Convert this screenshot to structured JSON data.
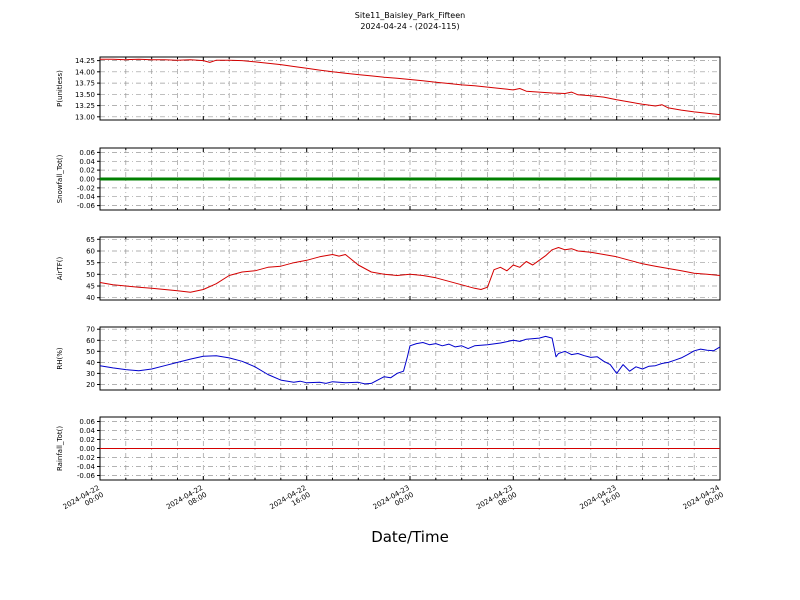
{
  "figure": {
    "title_line1": "Site11_Baisley_Park_Fifteen",
    "title_line2": "2024-04-24 - (2024-115)",
    "xlabel": "Date/Time"
  },
  "axes": {
    "xlim": [
      0,
      48
    ],
    "x_minor_step": 2,
    "x_major_step": 8,
    "x_major_ticks": [
      {
        "value": 0,
        "date": "2024-04-22",
        "time": "00:00"
      },
      {
        "value": 8,
        "date": "2024-04-22",
        "time": "08:00"
      },
      {
        "value": 16,
        "date": "2024-04-22",
        "time": "16:00"
      },
      {
        "value": 24,
        "date": "2024-04-23",
        "time": "00:00"
      },
      {
        "value": 32,
        "date": "2024-04-23",
        "time": "08:00"
      },
      {
        "value": 40,
        "date": "2024-04-23",
        "time": "16:00"
      },
      {
        "value": 48,
        "date": "2024-04-24",
        "time": "00:00"
      }
    ]
  },
  "chart_data": [
    {
      "type": "line",
      "name": "P",
      "ylabel": "P(unitless)",
      "color": "#d40000",
      "line_width": 1,
      "ylim": [
        12.93,
        14.33
      ],
      "yticks": [
        13.0,
        13.25,
        13.5,
        13.75,
        14.0,
        14.25
      ],
      "tick_decimals": 2,
      "points": [
        [
          0,
          14.28
        ],
        [
          1,
          14.28
        ],
        [
          2,
          14.27
        ],
        [
          3,
          14.28
        ],
        [
          4,
          14.27
        ],
        [
          5,
          14.27
        ],
        [
          6,
          14.26
        ],
        [
          7,
          14.27
        ],
        [
          8,
          14.25
        ],
        [
          8.5,
          14.21
        ],
        [
          9,
          14.26
        ],
        [
          10,
          14.26
        ],
        [
          11,
          14.25
        ],
        [
          12,
          14.22
        ],
        [
          13,
          14.19
        ],
        [
          14,
          14.16
        ],
        [
          15,
          14.12
        ],
        [
          16,
          14.08
        ],
        [
          17,
          14.04
        ],
        [
          18,
          14.0
        ],
        [
          19,
          13.97
        ],
        [
          20,
          13.94
        ],
        [
          21,
          13.91
        ],
        [
          22,
          13.88
        ],
        [
          23,
          13.86
        ],
        [
          24,
          13.83
        ],
        [
          25,
          13.8
        ],
        [
          26,
          13.77
        ],
        [
          27,
          13.74
        ],
        [
          28,
          13.71
        ],
        [
          29,
          13.69
        ],
        [
          30,
          13.66
        ],
        [
          31,
          13.63
        ],
        [
          32,
          13.6
        ],
        [
          32.5,
          13.63
        ],
        [
          33,
          13.57
        ],
        [
          34,
          13.55
        ],
        [
          35,
          13.53
        ],
        [
          36,
          13.52
        ],
        [
          36.5,
          13.55
        ],
        [
          37,
          13.49
        ],
        [
          38,
          13.47
        ],
        [
          39,
          13.44
        ],
        [
          40,
          13.38
        ],
        [
          41,
          13.33
        ],
        [
          42,
          13.28
        ],
        [
          43,
          13.24
        ],
        [
          43.5,
          13.27
        ],
        [
          44,
          13.2
        ],
        [
          45,
          13.15
        ],
        [
          46,
          13.11
        ],
        [
          47,
          13.08
        ],
        [
          48,
          13.05
        ]
      ]
    },
    {
      "type": "line",
      "name": "Snowfall_Tot",
      "ylabel": "Snowfall_Tot()",
      "color": "#007f00",
      "line_width": 3,
      "ylim": [
        -0.07,
        0.07
      ],
      "yticks": [
        -0.06,
        -0.04,
        -0.02,
        0.0,
        0.02,
        0.04,
        0.06
      ],
      "tick_decimals": 2,
      "points": [
        [
          0,
          0
        ],
        [
          48,
          0
        ]
      ]
    },
    {
      "type": "line",
      "name": "AirTF",
      "ylabel": "AirTF()",
      "color": "#d40000",
      "line_width": 1,
      "ylim": [
        39,
        66
      ],
      "yticks": [
        40,
        45,
        50,
        55,
        60,
        65
      ],
      "tick_decimals": 0,
      "points": [
        [
          0,
          46.5
        ],
        [
          1,
          45.5
        ],
        [
          2,
          45
        ],
        [
          3,
          44.5
        ],
        [
          4,
          44
        ],
        [
          5,
          43.5
        ],
        [
          6,
          43
        ],
        [
          7,
          42.3
        ],
        [
          8,
          43.5
        ],
        [
          9,
          46
        ],
        [
          10,
          49.5
        ],
        [
          11,
          51
        ],
        [
          12,
          51.5
        ],
        [
          13,
          53
        ],
        [
          14,
          53.5
        ],
        [
          15,
          55
        ],
        [
          16,
          56
        ],
        [
          17,
          57.5
        ],
        [
          18,
          58.5
        ],
        [
          18.5,
          57.8
        ],
        [
          19,
          58.5
        ],
        [
          20,
          54
        ],
        [
          21,
          51
        ],
        [
          22,
          50
        ],
        [
          23,
          49.5
        ],
        [
          24,
          50
        ],
        [
          25,
          49.5
        ],
        [
          26,
          48.5
        ],
        [
          27,
          47
        ],
        [
          28,
          45.5
        ],
        [
          29,
          44
        ],
        [
          29.5,
          43.5
        ],
        [
          30,
          44.5
        ],
        [
          30.5,
          52
        ],
        [
          31,
          53
        ],
        [
          31.5,
          51.5
        ],
        [
          32,
          54
        ],
        [
          32.5,
          53
        ],
        [
          33,
          55.5
        ],
        [
          33.5,
          54
        ],
        [
          34,
          56
        ],
        [
          34.5,
          58
        ],
        [
          35,
          60.5
        ],
        [
          35.5,
          61.5
        ],
        [
          36,
          60.5
        ],
        [
          36.5,
          61
        ],
        [
          37,
          60
        ],
        [
          38,
          59.5
        ],
        [
          39,
          58.5
        ],
        [
          40,
          57.5
        ],
        [
          41,
          56
        ],
        [
          42,
          54.5
        ],
        [
          43,
          53.5
        ],
        [
          44,
          52.5
        ],
        [
          45,
          51.5
        ],
        [
          46,
          50.5
        ],
        [
          47,
          50
        ],
        [
          48,
          49.5
        ]
      ]
    },
    {
      "type": "line",
      "name": "RH",
      "ylabel": "RH(%)",
      "color": "#0000cc",
      "line_width": 1,
      "ylim": [
        15,
        72
      ],
      "yticks": [
        20,
        30,
        40,
        50,
        60,
        70
      ],
      "tick_decimals": 0,
      "points": [
        [
          0,
          37
        ],
        [
          1,
          35
        ],
        [
          2,
          33.5
        ],
        [
          3,
          32.5
        ],
        [
          4,
          34
        ],
        [
          5,
          37
        ],
        [
          6,
          40
        ],
        [
          7,
          43
        ],
        [
          8,
          45.5
        ],
        [
          9,
          46
        ],
        [
          10,
          44
        ],
        [
          11,
          41
        ],
        [
          12,
          36
        ],
        [
          13,
          29
        ],
        [
          14,
          24
        ],
        [
          15,
          22
        ],
        [
          15.5,
          23
        ],
        [
          16,
          21.5
        ],
        [
          17,
          22
        ],
        [
          17.5,
          21
        ],
        [
          18,
          22.5
        ],
        [
          19,
          21.5
        ],
        [
          20,
          22
        ],
        [
          20.5,
          20.5
        ],
        [
          21,
          21
        ],
        [
          22,
          27
        ],
        [
          22.5,
          26
        ],
        [
          23,
          30
        ],
        [
          23.5,
          32
        ],
        [
          23.8,
          45
        ],
        [
          24,
          55
        ],
        [
          24.5,
          57
        ],
        [
          25,
          58
        ],
        [
          25.5,
          56
        ],
        [
          26,
          57
        ],
        [
          26.5,
          55
        ],
        [
          27,
          56.5
        ],
        [
          27.5,
          54
        ],
        [
          28,
          55
        ],
        [
          28.5,
          52.5
        ],
        [
          29,
          55
        ],
        [
          30,
          56
        ],
        [
          31,
          57.5
        ],
        [
          32,
          60
        ],
        [
          32.5,
          59
        ],
        [
          33,
          61
        ],
        [
          34,
          62
        ],
        [
          34.5,
          63.5
        ],
        [
          35,
          62
        ],
        [
          35.3,
          45
        ],
        [
          35.5,
          48
        ],
        [
          36,
          50
        ],
        [
          36.5,
          47
        ],
        [
          37,
          48
        ],
        [
          37.5,
          46
        ],
        [
          38,
          44.5
        ],
        [
          38.5,
          45
        ],
        [
          39,
          41
        ],
        [
          39.5,
          38
        ],
        [
          40,
          30
        ],
        [
          40.5,
          38
        ],
        [
          41,
          32
        ],
        [
          41.5,
          36
        ],
        [
          42,
          34
        ],
        [
          42.5,
          36.5
        ],
        [
          43,
          37
        ],
        [
          43.5,
          39
        ],
        [
          44,
          40
        ],
        [
          44.5,
          42
        ],
        [
          45,
          44
        ],
        [
          45.5,
          47
        ],
        [
          46,
          50.5
        ],
        [
          46.5,
          52
        ],
        [
          47,
          51
        ],
        [
          47.5,
          50.5
        ],
        [
          48,
          54
        ]
      ]
    },
    {
      "type": "line",
      "name": "Rainfall_Tot",
      "ylabel": "Rainfall_Tot()",
      "color": "#d40000",
      "line_width": 1,
      "ylim": [
        -0.07,
        0.07
      ],
      "yticks": [
        -0.06,
        -0.04,
        -0.02,
        0.0,
        0.02,
        0.04,
        0.06
      ],
      "tick_decimals": 2,
      "points": [
        [
          0,
          0
        ],
        [
          48,
          0
        ]
      ]
    }
  ]
}
